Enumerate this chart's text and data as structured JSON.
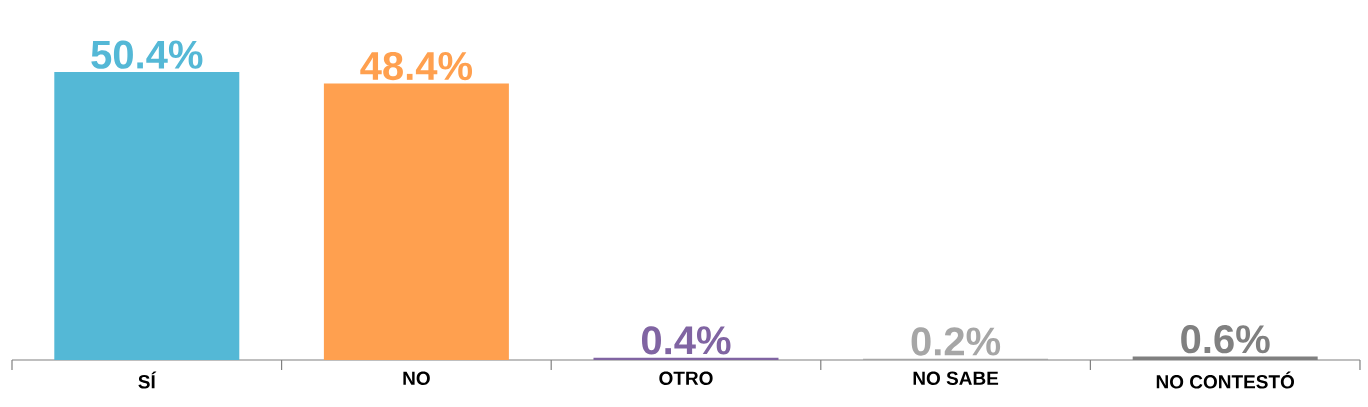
{
  "chart_data": {
    "type": "bar",
    "categories": [
      "SÍ",
      "NO",
      "OTRO",
      "NO SABE",
      "NO CONTESTÓ"
    ],
    "values": [
      50.4,
      48.4,
      0.4,
      0.2,
      0.6
    ],
    "colors": [
      "#54b8d6",
      "#ffa04f",
      "#8064a2",
      "#a6a6a6",
      "#808080"
    ],
    "value_labels": [
      "50.4%",
      "48.4%",
      "0.4%",
      "0.2%",
      "0.6%"
    ]
  }
}
